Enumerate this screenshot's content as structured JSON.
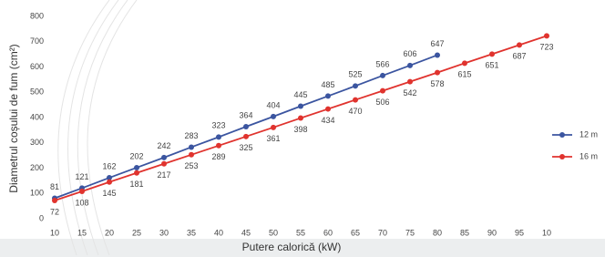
{
  "chart_data": {
    "type": "line",
    "x_label": "Putere calorică (kW)",
    "y_label": "Diametrul coșului de fum (cm²)",
    "categories": [
      "10",
      "15",
      "20",
      "25",
      "30",
      "35",
      "40",
      "45",
      "50",
      "55",
      "60",
      "65",
      "70",
      "75",
      "80",
      "85",
      "90",
      "95",
      "10"
    ],
    "series": [
      {
        "name": "12 m",
        "color": "#3b55a0",
        "values": [
          81,
          121,
          162,
          202,
          242,
          283,
          323,
          364,
          404,
          445,
          485,
          525,
          566,
          606,
          647,
          null,
          null,
          null,
          null
        ]
      },
      {
        "name": "16 m",
        "color": "#e0332e",
        "values": [
          72,
          108,
          145,
          181,
          217,
          253,
          289,
          325,
          361,
          398,
          434,
          470,
          506,
          542,
          578,
          615,
          651,
          687,
          723
        ]
      }
    ],
    "ylim": [
      0,
      800
    ],
    "yticks": [
      0,
      100,
      200,
      300,
      400,
      500,
      600,
      700,
      800
    ],
    "grid": false,
    "legend": "right"
  }
}
